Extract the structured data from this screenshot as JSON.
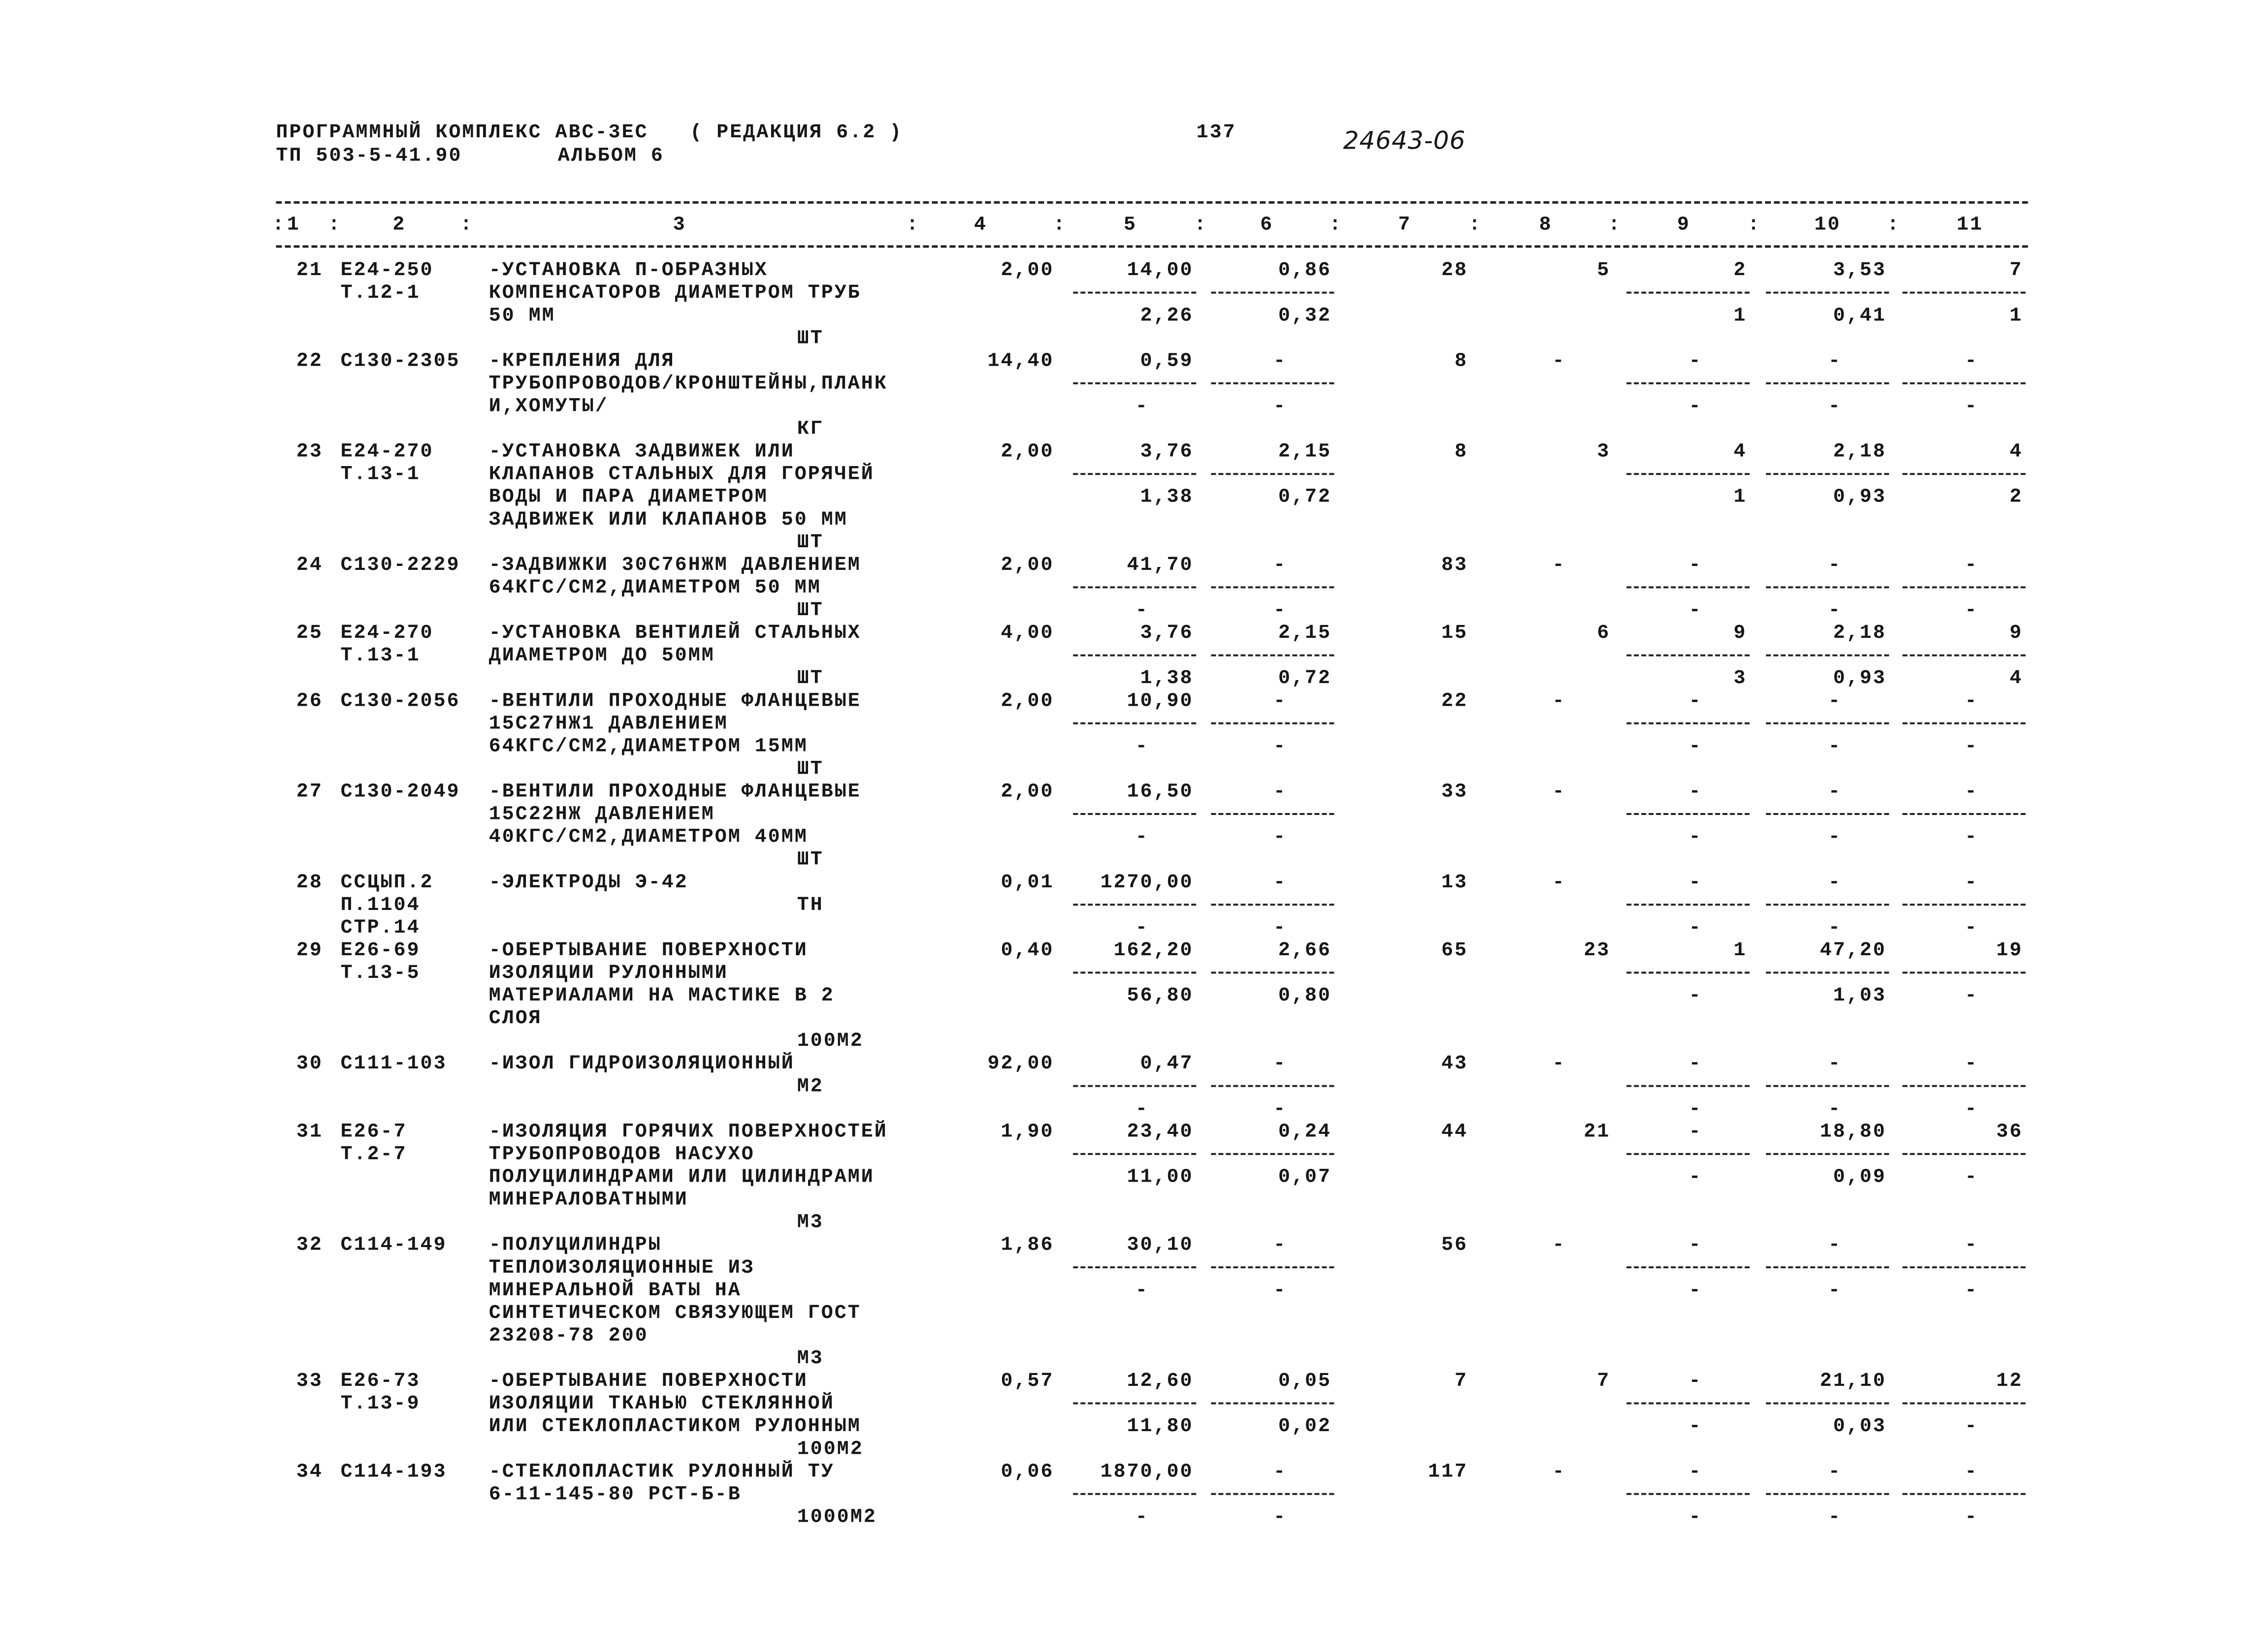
{
  "header": {
    "program": "ПРОГРАММНЫЙ КОМПЛЕКС АВС-3ЕС",
    "edition": "( РЕДАКЦИЯ 6.2 )",
    "project": "ТП 503-5-41.90",
    "album": "АЛЬБОМ 6",
    "page": "137",
    "doc_number": "24643-06"
  },
  "column_separator": ":",
  "columns": [
    "1",
    "2",
    "3",
    "4",
    "5",
    "6",
    "7",
    "8",
    "9",
    "10",
    "11"
  ],
  "rows": [
    {
      "no": "21",
      "code": [
        "Е24-250",
        "Т.12-1"
      ],
      "name": [
        "-УСТАНОВКА П-ОБРАЗНЫХ",
        "КОМПЕНСАТОРОВ ДИАМЕТРОМ ТРУБ",
        "50 ММ"
      ],
      "unit": "ШТ",
      "qty": "2,00",
      "c5": [
        "14,00",
        "2,26"
      ],
      "c6": [
        "0,86",
        "0,32"
      ],
      "c7": "28",
      "c8": "5",
      "c9": [
        "2",
        "1"
      ],
      "c10": [
        "3,53",
        "0,41"
      ],
      "c11": [
        "7",
        "1"
      ]
    },
    {
      "no": "22",
      "code": [
        "С130-2305"
      ],
      "name": [
        "-КРЕПЛЕНИЯ ДЛЯ",
        "ТРУБОПРОВОДОВ/КРОНШТЕЙНЫ,ПЛАНК",
        "И,ХОМУТЫ/"
      ],
      "unit": "КГ",
      "qty": "14,40",
      "c5": [
        "0,59",
        "-"
      ],
      "c6": [
        "-",
        "-"
      ],
      "c7": "8",
      "c8": "-",
      "c9": [
        "-",
        "-"
      ],
      "c10": [
        "-",
        "-"
      ],
      "c11": [
        "-",
        "-"
      ]
    },
    {
      "no": "23",
      "code": [
        "Е24-270",
        "Т.13-1"
      ],
      "name": [
        "-УСТАНОВКА ЗАДВИЖЕК ИЛИ",
        "КЛАПАНОВ СТАЛЬНЫХ ДЛЯ ГОРЯЧЕЙ",
        "ВОДЫ И ПАРА ДИАМЕТРОМ",
        "ЗАДВИЖЕК ИЛИ КЛАПАНОВ 50 ММ"
      ],
      "unit": "ШТ",
      "qty": "2,00",
      "c5": [
        "3,76",
        "1,38"
      ],
      "c6": [
        "2,15",
        "0,72"
      ],
      "c7": "8",
      "c8": "3",
      "c9": [
        "4",
        "1"
      ],
      "c10": [
        "2,18",
        "0,93"
      ],
      "c11": [
        "4",
        "2"
      ]
    },
    {
      "no": "24",
      "code": [
        "С130-2229"
      ],
      "name": [
        "-ЗАДВИЖКИ 30С76НЖМ ДАВЛЕНИЕМ",
        "64КГС/СМ2,ДИАМЕТРОМ 50 ММ"
      ],
      "unit": "ШТ",
      "qty": "2,00",
      "c5": [
        "41,70",
        "-"
      ],
      "c6": [
        "-",
        "-"
      ],
      "c7": "83",
      "c8": "-",
      "c9": [
        "-",
        "-"
      ],
      "c10": [
        "-",
        "-"
      ],
      "c11": [
        "-",
        "-"
      ]
    },
    {
      "no": "25",
      "code": [
        "Е24-270",
        "Т.13-1"
      ],
      "name": [
        "-УСТАНОВКА ВЕНТИЛЕЙ СТАЛЬНЫХ",
        "ДИАМЕТРОМ ДО 50ММ"
      ],
      "unit": "ШТ",
      "qty": "4,00",
      "c5": [
        "3,76",
        "1,38"
      ],
      "c6": [
        "2,15",
        "0,72"
      ],
      "c7": "15",
      "c8": "6",
      "c9": [
        "9",
        "3"
      ],
      "c10": [
        "2,18",
        "0,93"
      ],
      "c11": [
        "9",
        "4"
      ]
    },
    {
      "no": "26",
      "code": [
        "С130-2056"
      ],
      "name": [
        "-ВЕНТИЛИ ПРОХОДНЫЕ ФЛАНЦЕВЫЕ",
        "15С27НЖ1 ДАВЛЕНИЕМ",
        "64КГС/СМ2,ДИАМЕТРОМ 15ММ"
      ],
      "unit": "ШТ",
      "qty": "2,00",
      "c5": [
        "10,90",
        "-"
      ],
      "c6": [
        "-",
        "-"
      ],
      "c7": "22",
      "c8": "-",
      "c9": [
        "-",
        "-"
      ],
      "c10": [
        "-",
        "-"
      ],
      "c11": [
        "-",
        "-"
      ]
    },
    {
      "no": "27",
      "code": [
        "С130-2049"
      ],
      "name": [
        "-ВЕНТИЛИ ПРОХОДНЫЕ ФЛАНЦЕВЫЕ",
        "15С22НЖ ДАВЛЕНИЕМ",
        "40КГС/СМ2,ДИАМЕТРОМ 40ММ"
      ],
      "unit": "ШТ",
      "qty": "2,00",
      "c5": [
        "16,50",
        "-"
      ],
      "c6": [
        "-",
        "-"
      ],
      "c7": "33",
      "c8": "-",
      "c9": [
        "-",
        "-"
      ],
      "c10": [
        "-",
        "-"
      ],
      "c11": [
        "-",
        "-"
      ]
    },
    {
      "no": "28",
      "code": [
        "ССЦЫП.2",
        "П.1104",
        "СТР.14"
      ],
      "name": [
        "-ЭЛЕКТРОДЫ Э-42"
      ],
      "unit": "ТН",
      "qty": "0,01",
      "c5": [
        "1270,00",
        "-"
      ],
      "c6": [
        "-",
        "-"
      ],
      "c7": "13",
      "c8": "-",
      "c9": [
        "-",
        "-"
      ],
      "c10": [
        "-",
        "-"
      ],
      "c11": [
        "-",
        "-"
      ]
    },
    {
      "no": "29",
      "code": [
        "Е26-69",
        "Т.13-5"
      ],
      "name": [
        "-ОБЕРТЫВАНИЕ ПОВЕРХНОСТИ",
        "ИЗОЛЯЦИИ РУЛОННЫМИ",
        "МАТЕРИАЛАМИ НА МАСТИКЕ В 2",
        "СЛОЯ"
      ],
      "unit": "100М2",
      "qty": "0,40",
      "c5": [
        "162,20",
        "56,80"
      ],
      "c6": [
        "2,66",
        "0,80"
      ],
      "c7": "65",
      "c8": "23",
      "c9": [
        "1",
        "-"
      ],
      "c10": [
        "47,20",
        "1,03"
      ],
      "c11": [
        "19",
        "-"
      ]
    },
    {
      "no": "30",
      "code": [
        "С111-103"
      ],
      "name": [
        "-ИЗОЛ ГИДРОИЗОЛЯЦИОННЫЙ"
      ],
      "unit": "М2",
      "qty": "92,00",
      "c5": [
        "0,47",
        "-"
      ],
      "c6": [
        "-",
        "-"
      ],
      "c7": "43",
      "c8": "-",
      "c9": [
        "-",
        "-"
      ],
      "c10": [
        "-",
        "-"
      ],
      "c11": [
        "-",
        "-"
      ]
    },
    {
      "no": "31",
      "code": [
        "Е26-7",
        "Т.2-7"
      ],
      "name": [
        "-ИЗОЛЯЦИЯ ГОРЯЧИХ ПОВЕРХНОСТЕЙ",
        "ТРУБОПРОВОДОВ НАСУХО",
        "ПОЛУЦИЛИНДРАМИ ИЛИ ЦИЛИНДРАМИ",
        "МИНЕРАЛОВАТНЫМИ"
      ],
      "unit": "М3",
      "qty": "1,90",
      "c5": [
        "23,40",
        "11,00"
      ],
      "c6": [
        "0,24",
        "0,07"
      ],
      "c7": "44",
      "c8": "21",
      "c9": [
        "-",
        "-"
      ],
      "c10": [
        "18,80",
        "0,09"
      ],
      "c11": [
        "36",
        "-"
      ]
    },
    {
      "no": "32",
      "code": [
        "С114-149"
      ],
      "name": [
        "-ПОЛУЦИЛИНДРЫ",
        "ТЕПЛОИЗОЛЯЦИОННЫЕ ИЗ",
        "МИНЕРАЛЬНОЙ ВАТЫ НА",
        "СИНТЕТИЧЕСКОМ СВЯЗУЮЩЕМ ГОСТ",
        "23208-78 200"
      ],
      "unit": "М3",
      "qty": "1,86",
      "c5": [
        "30,10",
        "-"
      ],
      "c6": [
        "-",
        "-"
      ],
      "c7": "56",
      "c8": "-",
      "c9": [
        "-",
        "-"
      ],
      "c10": [
        "-",
        "-"
      ],
      "c11": [
        "-",
        "-"
      ]
    },
    {
      "no": "33",
      "code": [
        "Е26-73",
        "Т.13-9"
      ],
      "name": [
        "-ОБЕРТЫВАНИЕ ПОВЕРХНОСТИ",
        "ИЗОЛЯЦИИ ТКАНЬЮ СТЕКЛЯННОЙ",
        "ИЛИ СТЕКЛОПЛАСТИКОМ РУЛОННЫМ"
      ],
      "unit": "100М2",
      "qty": "0,57",
      "c5": [
        "12,60",
        "11,80"
      ],
      "c6": [
        "0,05",
        "0,02"
      ],
      "c7": "7",
      "c8": "7",
      "c9": [
        "-",
        "-"
      ],
      "c10": [
        "21,10",
        "0,03"
      ],
      "c11": [
        "12",
        "-"
      ]
    },
    {
      "no": "34",
      "code": [
        "С114-193"
      ],
      "name": [
        "-СТЕКЛОПЛАСТИК РУЛОННЫЙ ТУ",
        "6-11-145-80 РСТ-Б-В"
      ],
      "unit": "1000М2",
      "qty": "0,06",
      "c5": [
        "1870,00",
        "-"
      ],
      "c6": [
        "-",
        "-"
      ],
      "c7": "117",
      "c8": "-",
      "c9": [
        "-",
        "-"
      ],
      "c10": [
        "-",
        "-"
      ],
      "c11": [
        "-",
        "-"
      ]
    }
  ]
}
